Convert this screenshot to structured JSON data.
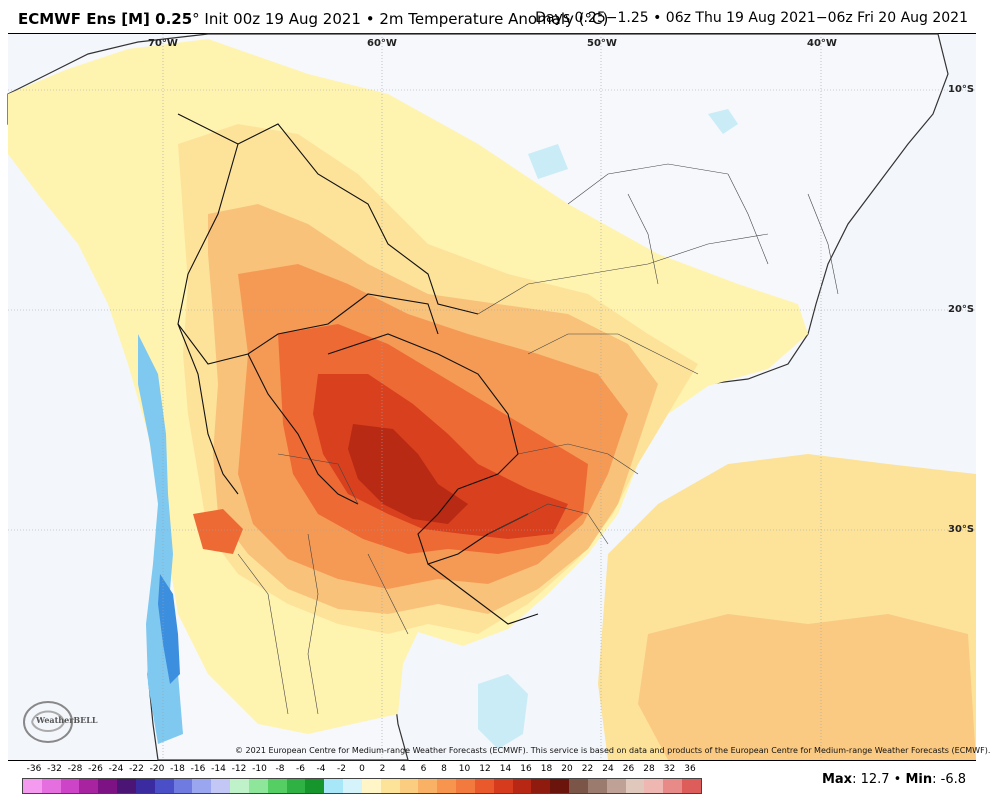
{
  "header": {
    "model": "ECMWF Ens [M] 0.25",
    "degree": "°",
    "init": " Init 00z 19 Aug 2021 • 2m Temperature Anomaly (°C)",
    "valid": "Days 0.25−1.25 • 06z Thu 19 Aug 2021−06z Fri 20 Aug 2021"
  },
  "map": {
    "longitude_labels": [
      "70°W",
      "60°W",
      "50°W",
      "40°W"
    ],
    "latitude_labels": [
      "10°S",
      "20°S",
      "30°S"
    ],
    "copyright": "© 2021 European Centre for Medium-range Weather Forecasts (ECMWF). This service is based on data and products of the European Centre for Medium-range Weather Forecasts (ECMWF).",
    "logo_text": "WeatherBELL",
    "colors": {
      "ocean_neutral": "#f3f6fb",
      "light_warm": "#fff3b0",
      "warm_1": "#fde39a",
      "warm_2": "#f9c27a",
      "warm_3": "#f59a55",
      "warm_4": "#ee6a35",
      "warm_5": "#d9401e",
      "warm_6": "#b82a13",
      "cool_1": "#c9ecf7",
      "cool_2": "#7fc8ef",
      "cool_3": "#3c8fde"
    }
  },
  "colorbar": {
    "labels": [
      "-36",
      "-32",
      "-28",
      "-26",
      "-24",
      "-22",
      "-20",
      "-18",
      "-16",
      "-14",
      "-12",
      "-10",
      "-8",
      "-6",
      "-4",
      "-2",
      "0",
      "2",
      "4",
      "6",
      "8",
      "10",
      "12",
      "14",
      "16",
      "18",
      "20",
      "22",
      "24",
      "26",
      "28",
      "32",
      "36"
    ],
    "colors": [
      "#f49bf0",
      "#e66fe0",
      "#cd44c8",
      "#a8239f",
      "#7c1283",
      "#4b1576",
      "#3a2ca0",
      "#4b4fc7",
      "#6f7be0",
      "#9aa6ef",
      "#c2c7f5",
      "#bff2c8",
      "#8de69a",
      "#55cf63",
      "#2fb243",
      "#15952b",
      "#a8e7f7",
      "#d5f3fb",
      "#fff5c6",
      "#fde39a",
      "#fbcd80",
      "#f9b166",
      "#f7954f",
      "#f27a3e",
      "#e9592b",
      "#d63b1d",
      "#b72713",
      "#8f1a0e",
      "#6a140b",
      "#7a5548",
      "#9b7b6d",
      "#bfa295",
      "#e0c8bd",
      "#efb7b1",
      "#e88a87",
      "#dd5d5a"
    ]
  },
  "stats": {
    "max_label": "Max",
    "max_value": ": 12.7 • ",
    "min_label": "Min",
    "min_value": ": -6.8"
  }
}
